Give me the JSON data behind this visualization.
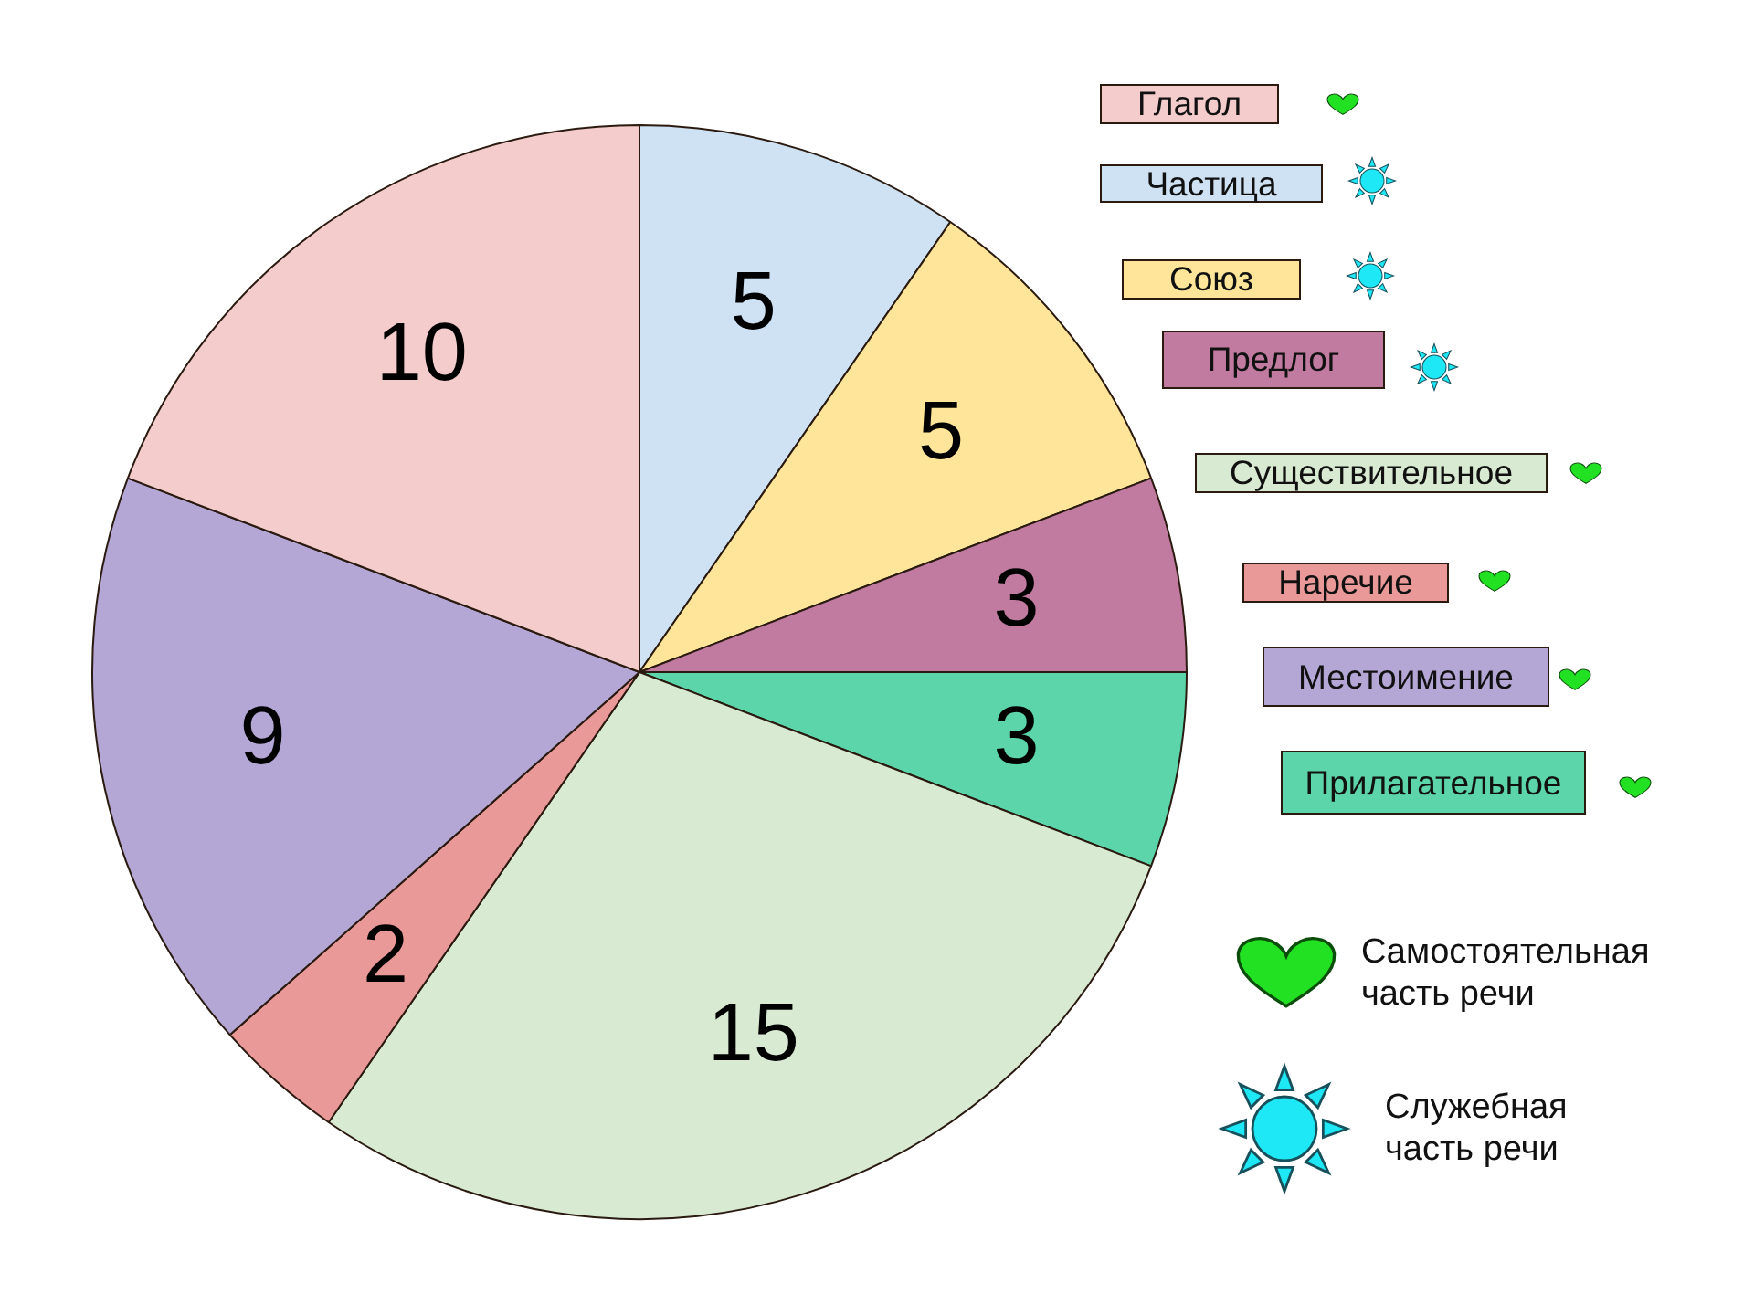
{
  "chart_data": {
    "type": "pie",
    "categories": [
      "Частица",
      "Союз",
      "Предлог",
      "Прилагательное",
      "Существительное",
      "Наречие",
      "Местоимение",
      "Глагол"
    ],
    "values": [
      5,
      5,
      3,
      3,
      15,
      2,
      9,
      10
    ],
    "colors": [
      "#cfe2f3",
      "#ffe599",
      "#c27ba0",
      "#5dd5aa",
      "#d9ead3",
      "#ea9999",
      "#b4a7d6",
      "#f4cccc"
    ],
    "data_labels": true,
    "legend": "right",
    "annotations": [
      "Самостоятельная часть речи",
      "Служебная часть речи"
    ]
  }
}
